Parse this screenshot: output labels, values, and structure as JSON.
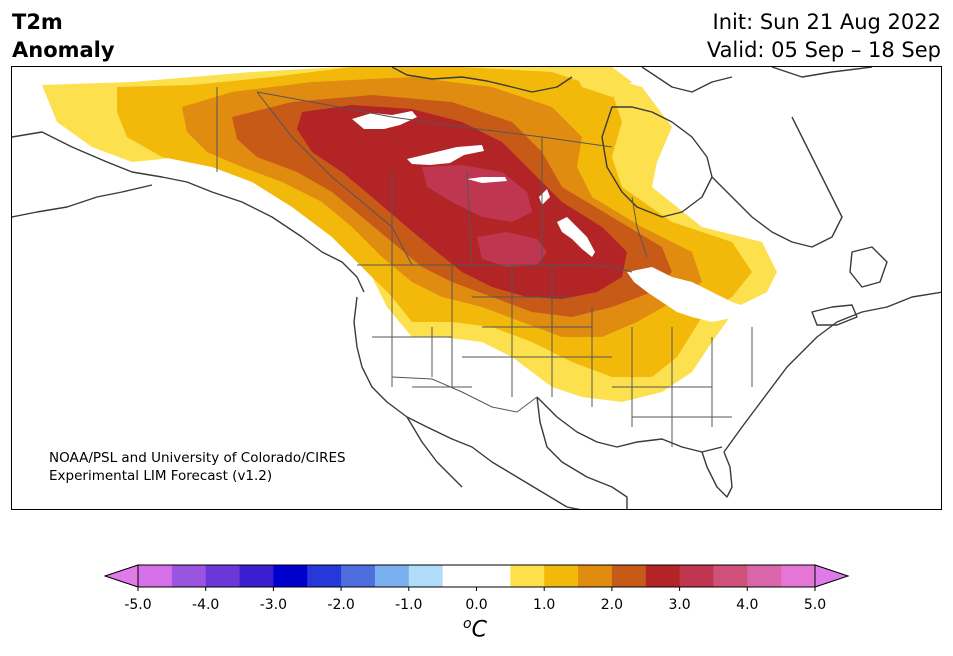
{
  "header": {
    "title_line1": "T2m",
    "title_line2": "Anomaly",
    "init": "Init: Sun 21 Aug 2022",
    "valid": "Valid: 05 Sep – 18 Sep"
  },
  "credit": {
    "line1": "NOAA/PSL and University of Colorado/CIRES",
    "line2": "Experimental LIM Forecast (v1.2)"
  },
  "colorbar": {
    "unit_base": "C",
    "unit_sup": "o",
    "ticks": [
      "-5.0",
      "-4.0",
      "-3.0",
      "-2.0",
      "-1.0",
      "0.0",
      "1.0",
      "2.0",
      "3.0",
      "4.0",
      "5.0"
    ],
    "colors": [
      "#d670e8",
      "#9a55e0",
      "#6a38d8",
      "#3a1ed0",
      "#0000cc",
      "#2638d8",
      "#4e6ee0",
      "#7ab0f0",
      "#b0dcf8",
      "#ffffff",
      "#ffffff",
      "#fde04e",
      "#f3b90a",
      "#e08c10",
      "#c85a18",
      "#b32426",
      "#be3650",
      "#cf5078",
      "#d966a8",
      "#e476d8"
    ],
    "under_color": "#e07ae8",
    "over_color": "#e07ae8"
  },
  "map": {
    "region": "North America",
    "variable": "2-meter temperature anomaly",
    "max_anomaly_c": 3.5,
    "max_anomaly_location": "Northern Great Plains / Saskatchewan"
  }
}
